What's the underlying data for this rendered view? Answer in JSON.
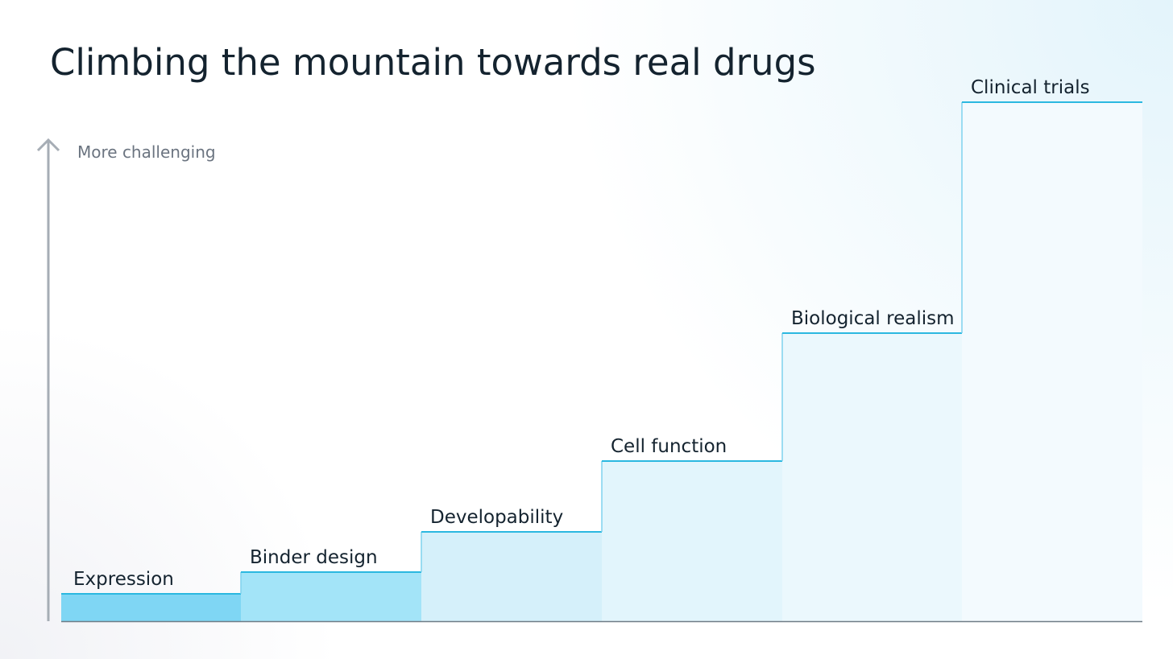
{
  "title": "Climbing the mountain towards real drugs",
  "axis_label": "More challenging",
  "steps": [
    "Expression",
    "Binder design",
    "Developability",
    "Cell function",
    "Biological realism",
    "Clinical trials"
  ]
}
